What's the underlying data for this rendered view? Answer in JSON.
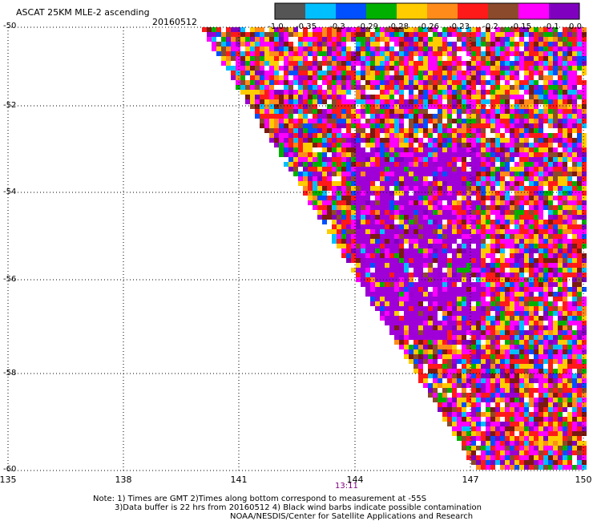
{
  "header": {
    "title": "ASCAT 25KM MLE-2 ascending",
    "date": "20160512"
  },
  "colorbar": {
    "colors": [
      "#555555",
      "#00bfff",
      "#0050ff",
      "#00b000",
      "#ffcc00",
      "#ff8c1a",
      "#ff1a1a",
      "#8b4a2b",
      "#ff00ff",
      "#8000c0"
    ],
    "labels": [
      "-1.0",
      "-0.35",
      "-0.3",
      "-0.29",
      "-0.28",
      "-0.26",
      "-0.23",
      "-0.2",
      "-0.15",
      "-0.1",
      "0.0"
    ]
  },
  "axes": {
    "y_ticks": [
      "-50",
      "-52",
      "-54",
      "-56",
      "-58",
      "-60"
    ],
    "x_ticks": [
      "135",
      "138",
      "141",
      "144",
      "147",
      "150"
    ],
    "time_label": "13:11"
  },
  "notes": {
    "line1": "Note: 1) Times are GMT 2)Times along bottom correspond to measurement at -55S",
    "line2": "3)Data buffer is 22 hrs from 20160512 4) Black wind barbs indicate possible contamination",
    "line3": "NOAA/NESDIS/Center for Satellite Applications and Research"
  }
}
